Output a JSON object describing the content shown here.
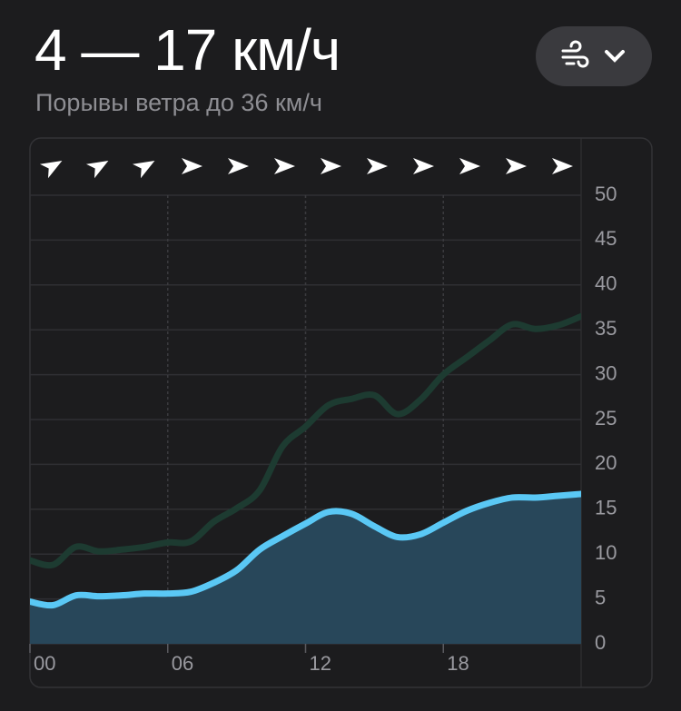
{
  "header": {
    "title": "4 — 17 км/ч",
    "subtitle": "Порывы ветра до 36 км/ч"
  },
  "chart_data": {
    "type": "area",
    "x": [
      0,
      1,
      2,
      3,
      4,
      5,
      6,
      7,
      8,
      9,
      10,
      11,
      12,
      13,
      14,
      15,
      16,
      17,
      18,
      19,
      20,
      21,
      22,
      23,
      24
    ],
    "series": [
      {
        "color": "#1d3b31",
        "values": [
          9.3,
          8.8,
          10.8,
          10.3,
          10.5,
          10.8,
          11.3,
          11.4,
          13.6,
          15.1,
          17.1,
          22.0,
          24.2,
          26.6,
          27.3,
          27.7,
          25.6,
          27.2,
          30.0,
          31.9,
          33.8,
          35.6,
          35.1,
          35.5,
          36.5
        ]
      },
      {
        "color": "#5ac8f5",
        "fill": "#28475a",
        "values": [
          4.7,
          4.3,
          5.4,
          5.3,
          5.4,
          5.6,
          5.6,
          5.8,
          6.8,
          8.2,
          10.5,
          12.0,
          13.4,
          14.7,
          14.5,
          13.1,
          11.9,
          12.2,
          13.5,
          14.8,
          15.7,
          16.3,
          16.3,
          16.5,
          16.7
        ]
      }
    ],
    "xlim": [
      0,
      24
    ],
    "xticks": [
      {
        "value": 0,
        "label": "00"
      },
      {
        "value": 6,
        "label": "06"
      },
      {
        "value": 12,
        "label": "12"
      },
      {
        "value": 18,
        "label": "18"
      }
    ],
    "ylim": [
      0,
      50
    ],
    "yticks": [
      0,
      5,
      10,
      15,
      20,
      25,
      30,
      35,
      40,
      45,
      50
    ],
    "grid": true
  }
}
